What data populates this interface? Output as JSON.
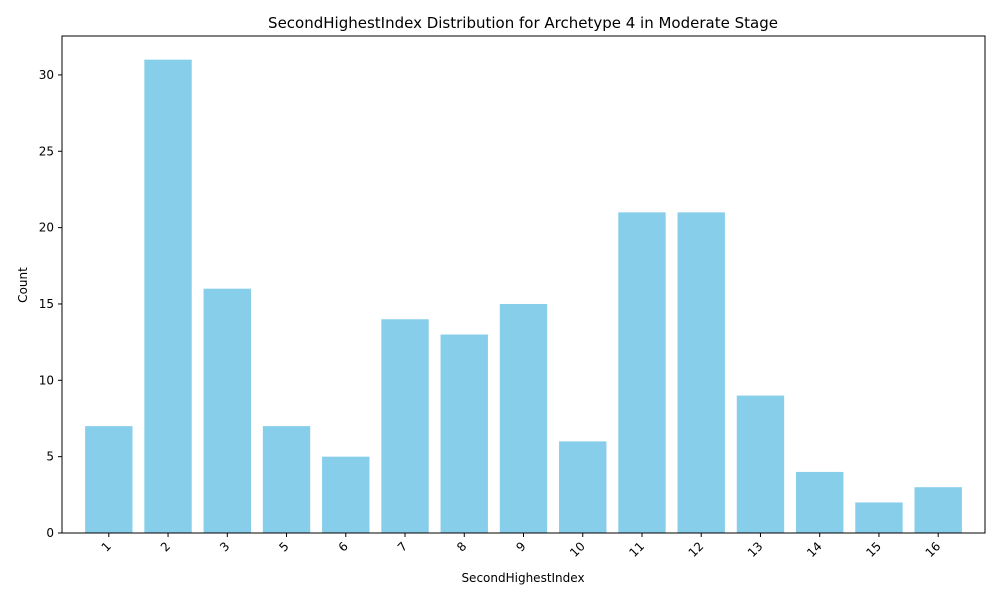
{
  "chart_data": {
    "type": "bar",
    "title": "SecondHighestIndex Distribution for Archetype 4 in Moderate Stage",
    "xlabel": "SecondHighestIndex",
    "ylabel": "Count",
    "categories": [
      "1",
      "2",
      "3",
      "5",
      "6",
      "7",
      "8",
      "9",
      "10",
      "11",
      "12",
      "13",
      "14",
      "15",
      "16"
    ],
    "values": [
      7,
      31,
      16,
      7,
      5,
      14,
      13,
      15,
      6,
      21,
      21,
      9,
      4,
      2,
      3
    ],
    "ylim": [
      0,
      32.55
    ],
    "yticks": [
      0,
      5,
      10,
      15,
      20,
      25,
      30
    ],
    "bar_color": "#87CEEB",
    "grid": false,
    "legend": "none"
  }
}
